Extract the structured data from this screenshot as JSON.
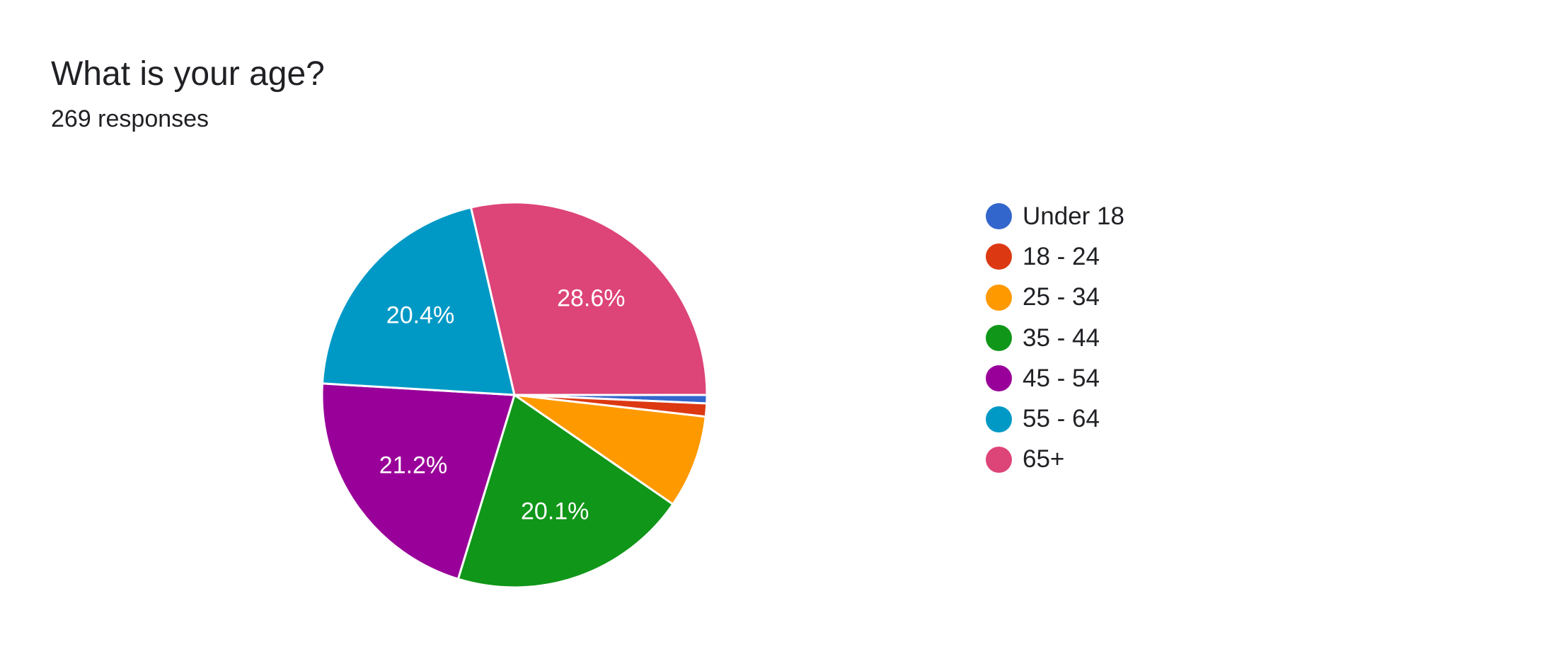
{
  "question": {
    "title": "What is your age?",
    "responses": "269 responses"
  },
  "chart_data": {
    "type": "pie",
    "title": "What is your age?",
    "subtitle": "269 responses",
    "legend_position": "right",
    "start_angle_deg": 90,
    "direction": "clockwise",
    "slices": [
      {
        "label": "Under 18",
        "percent": 0.7,
        "value_label": "",
        "color": "#3366cc"
      },
      {
        "label": "18 - 24",
        "percent": 1.1,
        "value_label": "",
        "color": "#dc3912"
      },
      {
        "label": "25 - 34",
        "percent": 7.8,
        "value_label": "",
        "color": "#ff9900"
      },
      {
        "label": "35 - 44",
        "percent": 20.1,
        "value_label": "20.1%",
        "color": "#109618"
      },
      {
        "label": "45 - 54",
        "percent": 21.2,
        "value_label": "21.2%",
        "color": "#990099"
      },
      {
        "label": "55 - 64",
        "percent": 20.4,
        "value_label": "20.4%",
        "color": "#0099c6"
      },
      {
        "label": "65+",
        "percent": 28.6,
        "value_label": "28.6%",
        "color": "#dd4477"
      }
    ]
  }
}
